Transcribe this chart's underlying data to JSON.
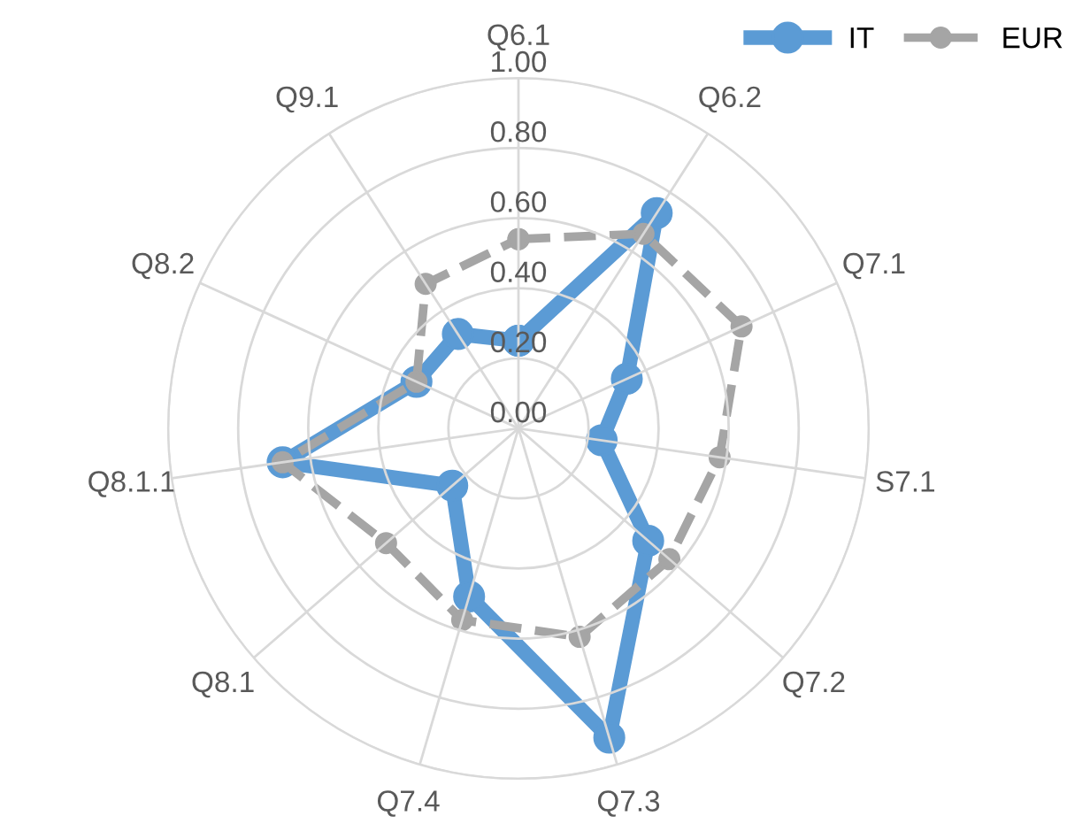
{
  "chart_data": {
    "type": "radar",
    "categories": [
      "Q6.1",
      "Q6.2",
      "Q7.1",
      "S7.1",
      "Q7.2",
      "Q7.3",
      "Q7.4",
      "Q8.1",
      "Q8.1.1",
      "Q8.2",
      "Q9.1"
    ],
    "series": [
      {
        "name": "IT",
        "color": "#5b9bd5",
        "line_style": "solid",
        "values": [
          0.25,
          0.73,
          0.34,
          0.24,
          0.49,
          0.92,
          0.5,
          0.25,
          0.68,
          0.32,
          0.32
        ]
      },
      {
        "name": "EUR",
        "color": "#a5a5a5",
        "line_style": "dashed",
        "values": [
          0.54,
          0.66,
          0.7,
          0.58,
          0.57,
          0.62,
          0.57,
          0.5,
          0.68,
          0.32,
          0.49
        ]
      }
    ],
    "ylim": [
      0,
      1
    ],
    "yticks": [
      {
        "value": 0,
        "label": "0.00"
      },
      {
        "value": 0.2,
        "label": "0.20"
      },
      {
        "value": 0.4,
        "label": "0.40"
      },
      {
        "value": 0.6,
        "label": "0.60"
      },
      {
        "value": 0.8,
        "label": "0.80"
      },
      {
        "value": 1,
        "label": "1.00"
      }
    ],
    "grid": true,
    "legend": "top right",
    "marker": "circle"
  }
}
